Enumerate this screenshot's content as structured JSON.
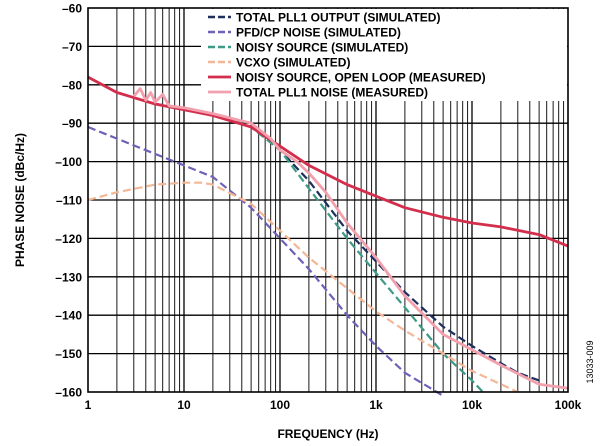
{
  "figure_id": "13033-009",
  "chart_data": {
    "type": "line",
    "title": "",
    "xlabel": "FREQUENCY (Hz)",
    "ylabel": "PHASE NOISE (dBc/Hz)",
    "xscale": "log",
    "xlim": [
      1,
      100000
    ],
    "ylim": [
      -160,
      -60
    ],
    "grid": true,
    "legend_position": "top-right",
    "x_ticks": [
      {
        "value": 1,
        "label": "1"
      },
      {
        "value": 10,
        "label": "10"
      },
      {
        "value": 100,
        "label": "100"
      },
      {
        "value": 1000,
        "label": "1k"
      },
      {
        "value": 10000,
        "label": "10k"
      },
      {
        "value": 100000,
        "label": "100k"
      }
    ],
    "y_ticks": [
      {
        "value": -60,
        "label": "–60"
      },
      {
        "value": -70,
        "label": "–70"
      },
      {
        "value": -80,
        "label": "–80"
      },
      {
        "value": -90,
        "label": "–90"
      },
      {
        "value": -100,
        "label": "–100"
      },
      {
        "value": -110,
        "label": "–110"
      },
      {
        "value": -120,
        "label": "–120"
      },
      {
        "value": -130,
        "label": "–130"
      },
      {
        "value": -140,
        "label": "–140"
      },
      {
        "value": -150,
        "label": "–150"
      },
      {
        "value": -160,
        "label": "–160"
      }
    ],
    "series": [
      {
        "name": "TOTAL PLL1 OUTPUT (SIMULATED)",
        "color": "#1c2f5e",
        "dash": "dashed",
        "x": [
          1,
          2,
          5,
          10,
          20,
          50,
          80,
          100,
          200,
          500,
          1000,
          2000,
          5000,
          10000,
          20000,
          30000,
          50000
        ],
        "y": [
          -78,
          -82,
          -85,
          -86,
          -87.5,
          -91,
          -95,
          -97,
          -105,
          -118,
          -126,
          -134,
          -143,
          -148,
          -152.5,
          -155,
          -157
        ]
      },
      {
        "name": "PFD/CP NOISE (SIMULATED)",
        "color": "#7060b8",
        "dash": "dashed",
        "x": [
          1,
          2,
          5,
          10,
          20,
          50,
          100,
          200,
          500,
          1000,
          2000,
          5000
        ],
        "y": [
          -91,
          -94,
          -98,
          -101,
          -104,
          -112,
          -120,
          -128,
          -140,
          -148,
          -155,
          -161
        ]
      },
      {
        "name": "NOISY SOURCE (SIMULATED)",
        "color": "#3c9a86",
        "dash": "dashed",
        "x": [
          1,
          2,
          5,
          10,
          20,
          50,
          100,
          200,
          500,
          1000,
          2000,
          5000,
          10000,
          13000
        ],
        "y": [
          -78,
          -82,
          -85,
          -86,
          -87.5,
          -91,
          -97,
          -107,
          -120,
          -129,
          -138,
          -150,
          -157,
          -160
        ]
      },
      {
        "name": "VCXO (SIMULATED)",
        "color": "#f4b796",
        "dash": "dashed",
        "x": [
          1,
          2,
          5,
          10,
          15,
          20,
          50,
          100,
          200,
          500,
          1000,
          2000,
          5000,
          10000,
          20000,
          30000
        ],
        "y": [
          -110,
          -108,
          -106,
          -105.5,
          -105.5,
          -106,
          -111,
          -118,
          -125,
          -133,
          -139,
          -144,
          -150,
          -154.5,
          -158,
          -160
        ]
      },
      {
        "name": "NOISY SOURCE, OPEN LOOP (MEASURED)",
        "color": "#d32f4d",
        "dash": "solid",
        "x": [
          1,
          2,
          5,
          10,
          20,
          50,
          100,
          200,
          500,
          1000,
          2000,
          5000,
          10000,
          20000,
          50000,
          100000
        ],
        "y": [
          -78,
          -82,
          -85,
          -86.5,
          -88,
          -91,
          -96,
          -101,
          -106,
          -109,
          -112,
          -114.5,
          -116,
          -117,
          -119,
          -122
        ]
      },
      {
        "name": "TOTAL PLL1 NOISE (MEASURED)",
        "color": "#f2a0ad",
        "dash": "solid",
        "x": [
          3,
          3.5,
          4,
          4.5,
          5,
          6,
          7,
          10,
          20,
          50,
          80,
          100,
          150,
          200,
          300,
          500,
          1000,
          2000,
          5000,
          10000,
          20000,
          50000,
          100000
        ],
        "y": [
          -83,
          -81,
          -84,
          -82,
          -84.5,
          -82.5,
          -85.5,
          -86,
          -87.5,
          -90,
          -94,
          -97,
          -100,
          -103,
          -108,
          -116,
          -125,
          -135,
          -145,
          -149,
          -153,
          -158,
          -159
        ]
      }
    ]
  }
}
